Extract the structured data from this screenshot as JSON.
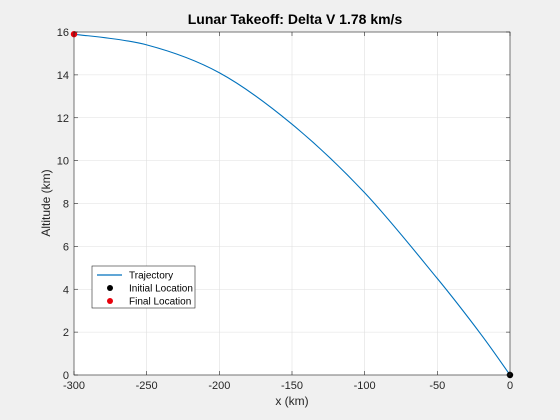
{
  "chart_data": {
    "type": "line",
    "title": "Lunar Takeoff: Delta V 1.78 km/s",
    "xlabel": "x (km)",
    "ylabel": "Altitude (km)",
    "xlim": [
      -300,
      0
    ],
    "ylim": [
      0,
      16
    ],
    "xticks": [
      -300,
      -250,
      -200,
      -150,
      -100,
      -50,
      0
    ],
    "yticks": [
      0,
      2,
      4,
      6,
      8,
      10,
      12,
      14,
      16
    ],
    "grid": true,
    "legend_position": "lower-left",
    "series": [
      {
        "name": "Trajectory",
        "color": "#0072bd",
        "kind": "line",
        "x": [
          0,
          -20,
          -50,
          -100,
          -150,
          -200,
          -250,
          -300
        ],
        "y": [
          0,
          1.9,
          4.5,
          8.5,
          11.7,
          14.1,
          15.4,
          15.9
        ]
      },
      {
        "name": "Initial Location",
        "color": "#000000",
        "kind": "marker",
        "x": [
          0
        ],
        "y": [
          0
        ]
      },
      {
        "name": "Final Location",
        "color": "#e8000b",
        "kind": "marker",
        "x": [
          -300
        ],
        "y": [
          15.9
        ]
      }
    ]
  }
}
